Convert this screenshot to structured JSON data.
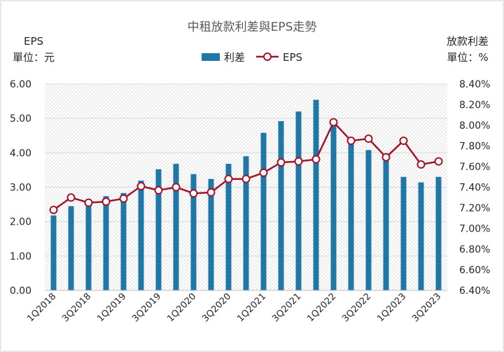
{
  "chart_data": {
    "type": "bar+line",
    "title": "中租放款利差與EPS走勢",
    "left_axis": {
      "label_line1": "EPS",
      "label_line2": "單位：元",
      "range": [
        0,
        6
      ],
      "ticks": [
        "0.00",
        "1.00",
        "2.00",
        "3.00",
        "4.00",
        "5.00",
        "6.00"
      ]
    },
    "right_axis": {
      "label_line1": "放款利差",
      "label_line2": "單位：%",
      "range": [
        6.4,
        8.4
      ],
      "ticks": [
        "6.40%",
        "6.60%",
        "6.80%",
        "7.00%",
        "7.20%",
        "7.40%",
        "7.60%",
        "7.80%",
        "8.00%",
        "8.20%",
        "8.40%"
      ]
    },
    "categories": [
      "1Q2018",
      "2Q2018",
      "3Q2018",
      "4Q2018",
      "1Q2019",
      "2Q2019",
      "3Q2019",
      "4Q2019",
      "1Q2020",
      "2Q2020",
      "3Q2020",
      "4Q2020",
      "1Q2021",
      "2Q2021",
      "3Q2021",
      "4Q2021",
      "1Q2022",
      "2Q2022",
      "3Q2022",
      "4Q2022",
      "1Q2023",
      "2Q2023",
      "3Q2023"
    ],
    "shown_tick_labels": [
      "1Q2018",
      "3Q2018",
      "1Q2019",
      "3Q2019",
      "1Q2020",
      "3Q2020",
      "1Q2021",
      "3Q2021",
      "1Q2022",
      "3Q2022",
      "1Q2023",
      "3Q2023"
    ],
    "series": [
      {
        "name": "利差",
        "type": "bar",
        "axis": "left",
        "color": "#1f77a8",
        "values": [
          2.18,
          2.45,
          2.52,
          2.74,
          2.83,
          3.19,
          3.52,
          3.68,
          3.38,
          3.24,
          3.68,
          3.9,
          4.58,
          4.92,
          5.2,
          5.54,
          4.88,
          4.36,
          4.08,
          3.88,
          3.3,
          3.14,
          3.3
        ]
      },
      {
        "name": "EPS",
        "type": "line",
        "axis": "right",
        "color": "#a0152a",
        "values": [
          7.18,
          7.3,
          7.25,
          7.26,
          7.29,
          7.41,
          7.37,
          7.4,
          7.34,
          7.35,
          7.48,
          7.48,
          7.54,
          7.64,
          7.65,
          7.67,
          8.03,
          7.85,
          7.87,
          7.69,
          7.85,
          7.62,
          7.65
        ]
      }
    ],
    "legend": {
      "position": "top-center",
      "entries": [
        "利差",
        "EPS"
      ]
    }
  }
}
